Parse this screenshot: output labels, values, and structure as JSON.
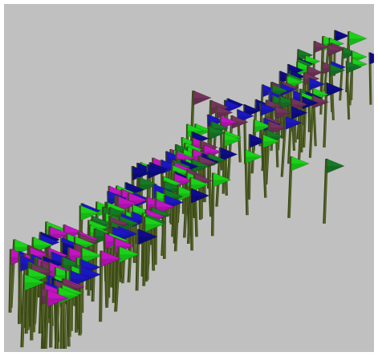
{
  "scene": {
    "background_color": "#c0c0c0",
    "frame_color": "#ffffff",
    "pole_color": "#3c4a1a",
    "pole_highlight_color": "#7a8a3a",
    "flag_colors": {
      "green": "#19d219",
      "dark_green": "#157a26",
      "blue": "#1c17c4",
      "dark_blue": "#0e0c8a",
      "magenta": "#c214c2",
      "plum": "#74345c"
    },
    "icons": [
      "flag-icon"
    ]
  }
}
